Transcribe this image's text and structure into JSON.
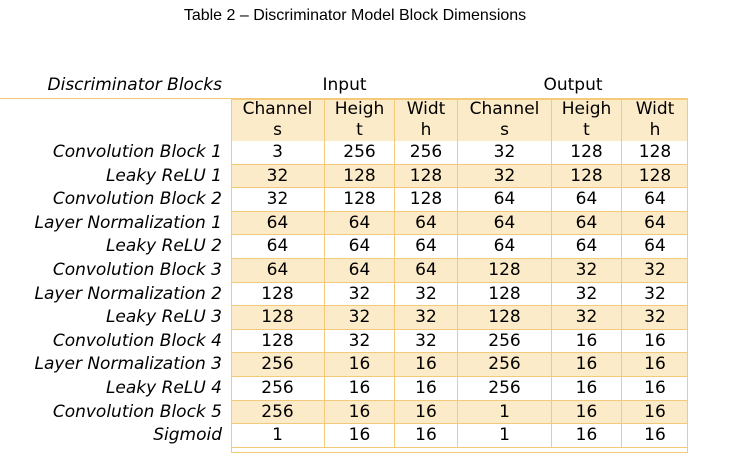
{
  "caption": "Table 2 – Discriminator Model Block Dimensions",
  "table": {
    "row_header": "Discriminator Blocks",
    "groups": {
      "input": "Input",
      "output": "Output"
    },
    "columns": [
      [
        "Channel",
        "s"
      ],
      [
        "Heigh",
        "t"
      ],
      [
        "Widt",
        "h"
      ],
      [
        "Channel",
        "s"
      ],
      [
        "Heigh",
        "t"
      ],
      [
        "Widt",
        "h"
      ]
    ],
    "rows": [
      {
        "label": "Convolution Block 1",
        "values": [
          "3",
          "256",
          "256",
          "32",
          "128",
          "128"
        ]
      },
      {
        "label": "Leaky ReLU 1",
        "values": [
          "32",
          "128",
          "128",
          "32",
          "128",
          "128"
        ]
      },
      {
        "label": "Convolution Block 2",
        "values": [
          "32",
          "128",
          "128",
          "64",
          "64",
          "64"
        ]
      },
      {
        "label": "Layer Normalization 1",
        "values": [
          "64",
          "64",
          "64",
          "64",
          "64",
          "64"
        ]
      },
      {
        "label": "Leaky ReLU 2",
        "values": [
          "64",
          "64",
          "64",
          "64",
          "64",
          "64"
        ]
      },
      {
        "label": "Convolution Block 3",
        "values": [
          "64",
          "64",
          "64",
          "128",
          "32",
          "32"
        ]
      },
      {
        "label": "Layer Normalization 2",
        "values": [
          "128",
          "32",
          "32",
          "128",
          "32",
          "32"
        ]
      },
      {
        "label": "Leaky ReLU 3",
        "values": [
          "128",
          "32",
          "32",
          "128",
          "32",
          "32"
        ]
      },
      {
        "label": "Convolution Block 4",
        "values": [
          "128",
          "32",
          "32",
          "256",
          "16",
          "16"
        ]
      },
      {
        "label": "Layer Normalization 3",
        "values": [
          "256",
          "16",
          "16",
          "256",
          "16",
          "16"
        ]
      },
      {
        "label": "Leaky ReLU 4",
        "values": [
          "256",
          "16",
          "16",
          "256",
          "16",
          "16"
        ]
      },
      {
        "label": "Convolution Block 5",
        "values": [
          "256",
          "16",
          "16",
          "1",
          "16",
          "16"
        ]
      },
      {
        "label": "Sigmoid",
        "values": [
          "1",
          "16",
          "16",
          "1",
          "16",
          "16"
        ]
      }
    ]
  }
}
